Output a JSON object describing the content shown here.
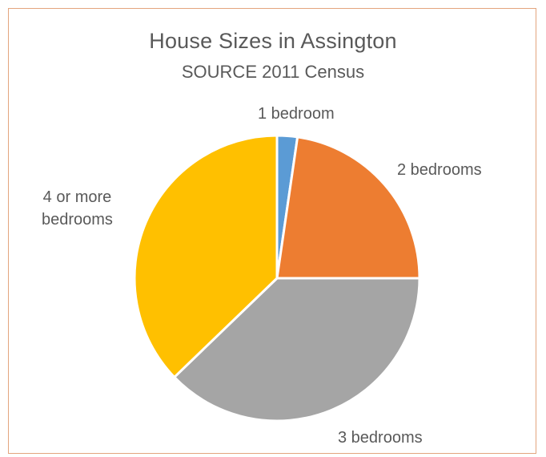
{
  "chart_data": {
    "type": "pie",
    "title": "House Sizes in Assington",
    "subtitle": "SOURCE 2011 Census",
    "categories": [
      "1 bedroom",
      "2 bedrooms",
      "3 bedrooms",
      "4 or more bedrooms"
    ],
    "values": [
      2.3,
      22.7,
      37.8,
      37.2
    ],
    "colors": [
      "#5b9bd5",
      "#ed7d31",
      "#a5a5a5",
      "#ffc000"
    ],
    "labels": {
      "one": "1 bedroom",
      "two": "2 bedrooms",
      "three": "3 bedrooms",
      "four_line1": "4 or more",
      "four_line2": "bedrooms"
    },
    "start_angle": "12 o'clock",
    "direction": "clockwise",
    "legend": "none (labels outside slices)"
  }
}
